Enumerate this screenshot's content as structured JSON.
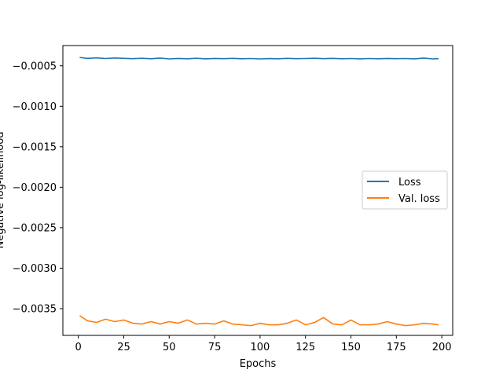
{
  "chart_data": {
    "type": "line",
    "title": "",
    "xlabel": "Epochs",
    "ylabel": "Negative log-likelihood",
    "xlim": [
      -8.5,
      206
    ],
    "ylim": [
      -0.00383,
      -0.00025
    ],
    "x_ticks": [
      0,
      25,
      50,
      75,
      100,
      125,
      150,
      175,
      200
    ],
    "x_tick_labels": [
      "0",
      "25",
      "50",
      "75",
      "100",
      "125",
      "150",
      "175",
      "200"
    ],
    "y_ticks": [
      -0.0005,
      -0.001,
      -0.0015,
      -0.002,
      -0.0025,
      -0.003,
      -0.0035
    ],
    "y_tick_labels": [
      "−0.0005",
      "−0.0010",
      "−0.0015",
      "−0.0020",
      "−0.0025",
      "−0.0030",
      "−0.0035"
    ],
    "grid": false,
    "legend": {
      "placement": "center-right",
      "entries": [
        "Loss",
        "Val. loss"
      ]
    },
    "x": [
      1,
      5,
      10,
      15,
      20,
      25,
      30,
      35,
      40,
      45,
      50,
      55,
      60,
      65,
      70,
      75,
      80,
      85,
      90,
      95,
      100,
      105,
      110,
      115,
      120,
      125,
      130,
      135,
      140,
      145,
      150,
      155,
      160,
      165,
      170,
      175,
      180,
      185,
      190,
      195,
      198
    ],
    "series": [
      {
        "name": "Loss",
        "color": "#1f77b4",
        "values": [
          -0.000398,
          -0.000408,
          -0.000402,
          -0.00041,
          -0.000403,
          -0.000408,
          -0.000412,
          -0.000407,
          -0.000413,
          -0.000405,
          -0.000415,
          -0.000409,
          -0.000413,
          -0.000407,
          -0.000414,
          -0.000409,
          -0.000412,
          -0.000408,
          -0.000413,
          -0.00041,
          -0.000415,
          -0.000411,
          -0.000413,
          -0.000408,
          -0.000412,
          -0.00041,
          -0.000407,
          -0.000412,
          -0.000408,
          -0.000413,
          -0.00041,
          -0.000414,
          -0.00041,
          -0.000413,
          -0.000409,
          -0.000412,
          -0.00041,
          -0.000414,
          -0.000405,
          -0.000415,
          -0.000412
        ]
      },
      {
        "name": "Val. loss",
        "color": "#ff7f0e",
        "values": [
          -0.00359,
          -0.00365,
          -0.00367,
          -0.00363,
          -0.00366,
          -0.00364,
          -0.00368,
          -0.00369,
          -0.00366,
          -0.00369,
          -0.00366,
          -0.00368,
          -0.00364,
          -0.00369,
          -0.00368,
          -0.00369,
          -0.00365,
          -0.00369,
          -0.0037,
          -0.00371,
          -0.00368,
          -0.0037,
          -0.0037,
          -0.00368,
          -0.00364,
          -0.0037,
          -0.00367,
          -0.00361,
          -0.00369,
          -0.0037,
          -0.00364,
          -0.0037,
          -0.0037,
          -0.00369,
          -0.00366,
          -0.00369,
          -0.00371,
          -0.0037,
          -0.00368,
          -0.00369,
          -0.0037
        ]
      }
    ]
  }
}
